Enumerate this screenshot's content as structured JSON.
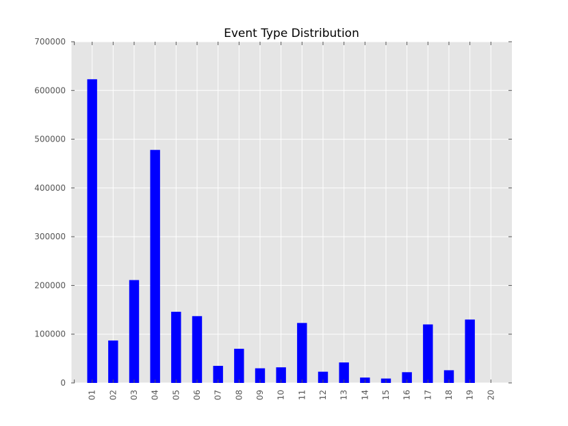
{
  "chart_data": {
    "type": "bar",
    "title": "Event Type Distribution",
    "xlabel": "",
    "ylabel": "",
    "categories": [
      "01",
      "02",
      "03",
      "04",
      "05",
      "06",
      "07",
      "08",
      "09",
      "10",
      "11",
      "12",
      "13",
      "14",
      "15",
      "16",
      "17",
      "18",
      "19",
      "20"
    ],
    "values": [
      623000,
      87000,
      211000,
      478000,
      146000,
      137000,
      35000,
      70000,
      30000,
      32000,
      123000,
      23000,
      42000,
      11000,
      9000,
      22000,
      120000,
      26000,
      130000,
      0
    ],
    "ylim": [
      0,
      700000
    ],
    "yticks": [
      "0",
      "100000",
      "200000",
      "300000",
      "400000",
      "500000",
      "600000",
      "700000"
    ],
    "grid": true,
    "legend": "none",
    "colors": {
      "bar": "#0000ff",
      "plot_background": "#e5e5e5",
      "grid": "#ffffff"
    }
  }
}
